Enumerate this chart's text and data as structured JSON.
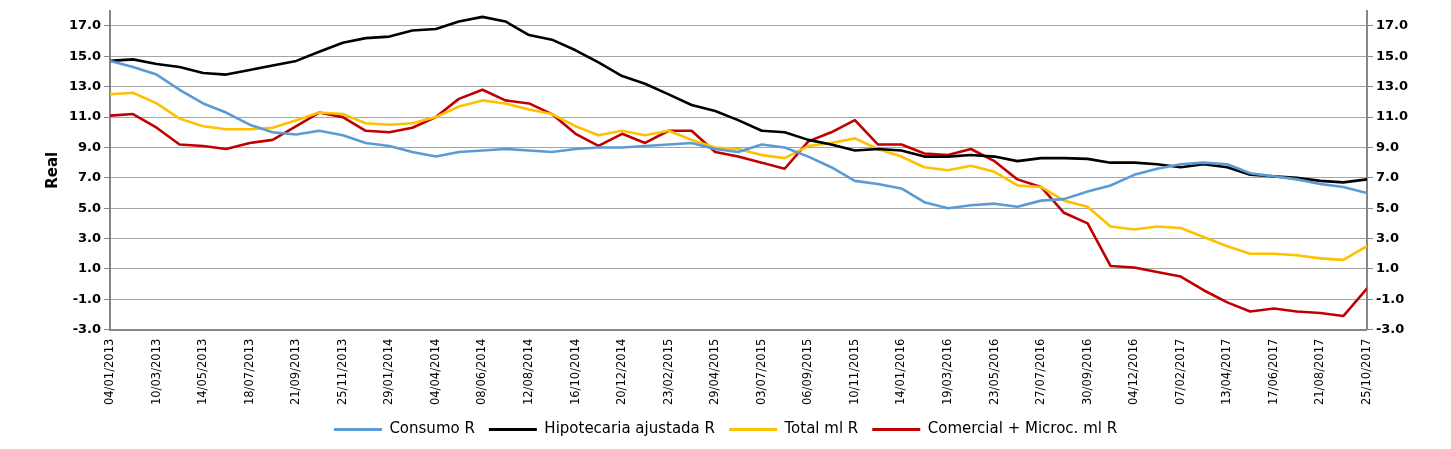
{
  "chart_data": {
    "type": "line",
    "ylabel": "Real",
    "x": [
      "2013-01-04",
      "2013-02-05",
      "2013-03-10",
      "2013-04-11",
      "2013-05-14",
      "2013-06-15",
      "2013-07-18",
      "2013-08-19",
      "2013-09-21",
      "2013-10-23",
      "2013-11-25",
      "2013-12-27",
      "2014-01-29",
      "2014-03-02",
      "2014-04-04",
      "2014-05-06",
      "2014-06-08",
      "2014-07-10",
      "2014-08-12",
      "2014-09-13",
      "2014-10-16",
      "2014-11-17",
      "2014-12-20",
      "2015-01-21",
      "2015-02-23",
      "2015-03-27",
      "2015-04-29",
      "2015-05-31",
      "2015-07-03",
      "2015-08-04",
      "2015-09-06",
      "2015-10-08",
      "2015-11-10",
      "2015-12-12",
      "2016-01-14",
      "2016-02-15",
      "2016-03-19",
      "2016-04-20",
      "2016-05-23",
      "2016-06-24",
      "2016-07-27",
      "2016-08-28",
      "2016-09-30",
      "2016-11-01",
      "2016-12-04",
      "2017-01-05",
      "2017-02-07",
      "2017-03-11",
      "2017-04-13",
      "2017-05-15",
      "2017-06-17",
      "2017-07-19",
      "2017-08-21",
      "2017-09-22",
      "2017-10-25"
    ],
    "series": [
      {
        "name": "Consumo R",
        "color": "#5b9bd5",
        "values": [
          14.7,
          14.3,
          13.8,
          12.8,
          11.9,
          11.3,
          10.5,
          10.0,
          9.85,
          10.1,
          9.8,
          9.3,
          9.1,
          8.7,
          8.4,
          8.7,
          8.8,
          8.9,
          8.8,
          8.7,
          8.9,
          9.0,
          9.0,
          9.1,
          9.2,
          9.3,
          8.9,
          8.7,
          9.2,
          9.0,
          8.4,
          7.7,
          6.8,
          6.6,
          6.3,
          5.4,
          5.0,
          5.2,
          5.3,
          5.1,
          5.5,
          5.6,
          6.1,
          6.5,
          7.2,
          7.6,
          7.9,
          8.0,
          7.9,
          7.3,
          7.1,
          6.9,
          6.6,
          6.4,
          6.0
        ]
      },
      {
        "name": "Hipotecaria ajustada R",
        "color": "#000000",
        "values": [
          14.7,
          14.8,
          14.5,
          14.3,
          13.9,
          13.8,
          14.1,
          14.4,
          14.7,
          15.3,
          15.9,
          16.2,
          16.3,
          16.7,
          16.8,
          17.3,
          17.6,
          17.3,
          16.4,
          16.1,
          15.4,
          14.6,
          13.7,
          13.2,
          12.5,
          11.8,
          11.4,
          10.8,
          10.1,
          10.0,
          9.5,
          9.2,
          8.8,
          8.9,
          8.8,
          8.4,
          8.4,
          8.5,
          8.4,
          8.1,
          8.3,
          8.3,
          8.25,
          8.0,
          8.0,
          7.9,
          7.7,
          7.9,
          7.7,
          7.2,
          7.1,
          7.0,
          6.8,
          6.7,
          6.9
        ]
      },
      {
        "name": "Total ml R",
        "color": "#ffc000",
        "values": [
          12.5,
          12.6,
          11.9,
          10.9,
          10.4,
          10.2,
          10.2,
          10.3,
          10.8,
          11.3,
          11.2,
          10.6,
          10.5,
          10.6,
          11.0,
          11.7,
          12.1,
          11.9,
          11.5,
          11.2,
          10.4,
          9.8,
          10.1,
          9.8,
          10.1,
          9.5,
          9.0,
          8.9,
          8.5,
          8.3,
          9.1,
          9.3,
          9.6,
          8.9,
          8.4,
          7.7,
          7.5,
          7.8,
          7.4,
          6.5,
          6.4,
          5.5,
          5.1,
          3.8,
          3.6,
          3.8,
          3.7,
          3.1,
          2.5,
          2.0,
          2.0,
          1.9,
          1.7,
          1.6,
          2.5
        ]
      },
      {
        "name": "Comercial + Microc. ml R",
        "color": "#c00000",
        "values": [
          11.1,
          11.2,
          10.3,
          9.2,
          9.1,
          8.9,
          9.3,
          9.5,
          10.4,
          11.3,
          11.0,
          10.1,
          10.0,
          10.3,
          11.0,
          12.2,
          12.8,
          12.1,
          11.9,
          11.2,
          9.9,
          9.1,
          9.9,
          9.3,
          10.1,
          10.1,
          8.7,
          8.4,
          8.0,
          7.6,
          9.4,
          10.0,
          10.8,
          9.2,
          9.2,
          8.6,
          8.5,
          8.9,
          8.1,
          6.9,
          6.4,
          4.7,
          4.0,
          1.2,
          1.1,
          0.8,
          0.5,
          -0.4,
          -1.2,
          -1.8,
          -1.6,
          -1.8,
          -1.9,
          -2.1,
          -0.3
        ]
      }
    ],
    "xlim": [
      "2013-01-04",
      "2017-10-25"
    ],
    "xticks": [
      {
        "value": "2013-01-04",
        "label": "04/01/2013"
      },
      {
        "value": "2013-03-10",
        "label": "10/03/2013"
      },
      {
        "value": "2013-05-14",
        "label": "14/05/2013"
      },
      {
        "value": "2013-07-18",
        "label": "18/07/2013"
      },
      {
        "value": "2013-09-21",
        "label": "21/09/2013"
      },
      {
        "value": "2013-11-25",
        "label": "25/11/2013"
      },
      {
        "value": "2014-01-29",
        "label": "29/01/2014"
      },
      {
        "value": "2014-04-04",
        "label": "04/04/2014"
      },
      {
        "value": "2014-06-08",
        "label": "08/06/2014"
      },
      {
        "value": "2014-08-12",
        "label": "12/08/2014"
      },
      {
        "value": "2014-10-16",
        "label": "16/10/2014"
      },
      {
        "value": "2014-12-20",
        "label": "20/12/2014"
      },
      {
        "value": "2015-02-23",
        "label": "23/02/2015"
      },
      {
        "value": "2015-04-29",
        "label": "29/04/2015"
      },
      {
        "value": "2015-07-03",
        "label": "03/07/2015"
      },
      {
        "value": "2015-09-06",
        "label": "06/09/2015"
      },
      {
        "value": "2015-11-10",
        "label": "10/11/2015"
      },
      {
        "value": "2016-01-14",
        "label": "14/01/2016"
      },
      {
        "value": "2016-03-19",
        "label": "19/03/2016"
      },
      {
        "value": "2016-05-23",
        "label": "23/05/2016"
      },
      {
        "value": "2016-07-27",
        "label": "27/07/2016"
      },
      {
        "value": "2016-09-30",
        "label": "30/09/2016"
      },
      {
        "value": "2016-12-04",
        "label": "04/12/2016"
      },
      {
        "value": "2017-02-07",
        "label": "07/02/2017"
      },
      {
        "value": "2017-04-13",
        "label": "13/04/2017"
      },
      {
        "value": "2017-06-17",
        "label": "17/06/2017"
      },
      {
        "value": "2017-08-21",
        "label": "21/08/2017"
      },
      {
        "value": "2017-10-25",
        "label": "25/10/2017"
      }
    ],
    "ylim": [
      -3,
      18
    ],
    "yticks": [
      {
        "value": -3,
        "label": "-3.0"
      },
      {
        "value": -1,
        "label": "-1.0"
      },
      {
        "value": 1,
        "label": "1.0"
      },
      {
        "value": 3,
        "label": "3.0"
      },
      {
        "value": 5,
        "label": "5.0"
      },
      {
        "value": 7,
        "label": "7.0"
      },
      {
        "value": 9,
        "label": "9.0"
      },
      {
        "value": 11,
        "label": "11.0"
      },
      {
        "value": 13,
        "label": "13.0"
      },
      {
        "value": 15,
        "label": "15.0"
      },
      {
        "value": 17,
        "label": "17.0"
      }
    ],
    "y2lim": [
      -3,
      18
    ],
    "y2ticks": [
      {
        "value": -3,
        "label": "-3.0"
      },
      {
        "value": -1,
        "label": "-1.0"
      },
      {
        "value": 1,
        "label": "1.0"
      },
      {
        "value": 3,
        "label": "3.0"
      },
      {
        "value": 5,
        "label": "5.0"
      },
      {
        "value": 7,
        "label": "7.0"
      },
      {
        "value": 9,
        "label": "9.0"
      },
      {
        "value": 11,
        "label": "11.0"
      },
      {
        "value": 13,
        "label": "13.0"
      },
      {
        "value": 15,
        "label": "15.0"
      },
      {
        "value": 17,
        "label": "17.0"
      }
    ],
    "grid": "y",
    "legend": "bottom",
    "marker": "none",
    "line_style": "solid"
  }
}
